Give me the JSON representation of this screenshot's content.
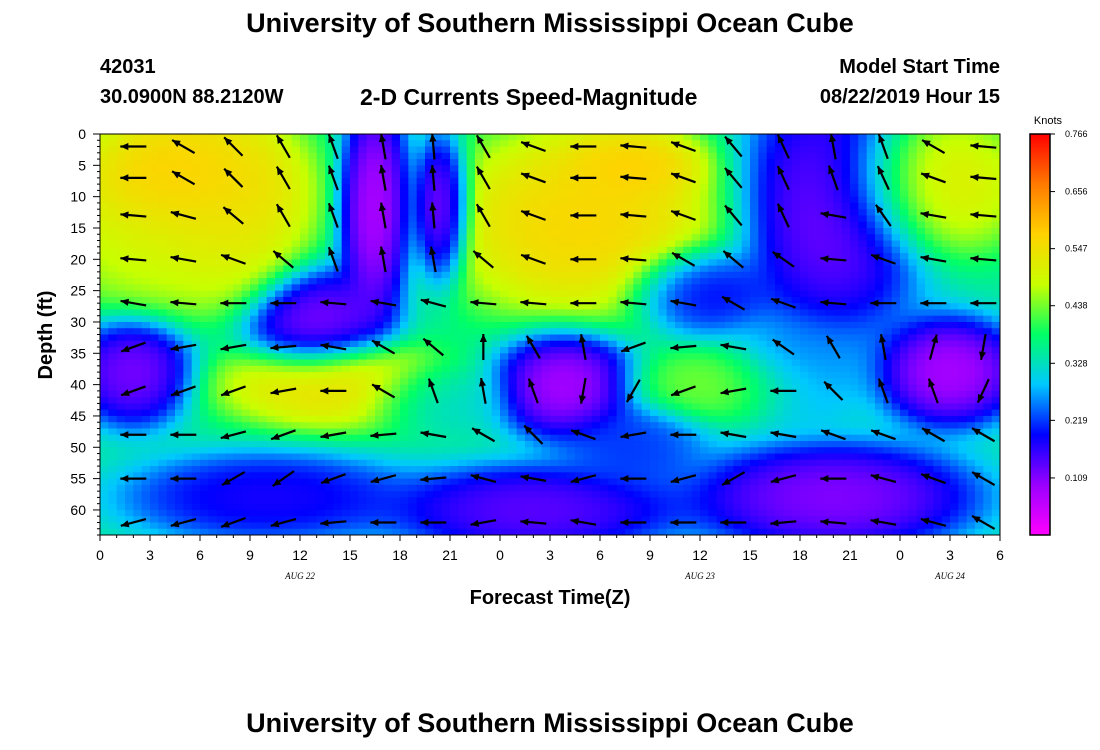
{
  "header": {
    "title": "University of Southern Mississippi Ocean Cube",
    "station": "42031",
    "coords": "30.0900N 88.2120W",
    "subtitle": "2-D Currents Speed-Magnitude",
    "model_start_label": "Model Start Time",
    "model_start_value": "08/22/2019 Hour 15"
  },
  "footer": {
    "title": "University of Southern Mississippi Ocean Cube"
  },
  "chart_data": {
    "type": "heatmap",
    "title": "2-D Currents Speed-Magnitude",
    "xlabel": "Forecast Time(Z)",
    "ylabel": "Depth (ft)",
    "x_ticks": [
      "0",
      "3",
      "6",
      "9",
      "12",
      "15",
      "18",
      "21",
      "0",
      "3",
      "6",
      "9",
      "12",
      "15",
      "18",
      "21",
      "0",
      "3",
      "6"
    ],
    "x_range_hours": [
      0,
      54
    ],
    "date_labels": [
      {
        "text": "AUG 22",
        "hour": 12
      },
      {
        "text": "AUG 23",
        "hour": 36
      },
      {
        "text": "AUG 24",
        "hour": 51
      }
    ],
    "y_ticks": [
      0,
      5,
      10,
      15,
      20,
      25,
      30,
      35,
      40,
      45,
      50,
      55,
      60
    ],
    "ylim": [
      0,
      64
    ],
    "y_inverted": true,
    "colorbar": {
      "title": "Knots",
      "ticks": [
        0.766,
        0.656,
        0.547,
        0.438,
        0.328,
        0.219,
        0.109
      ],
      "range": [
        0,
        0.766
      ],
      "colors": [
        "#ff00ff",
        "#9a00ff",
        "#0000ff",
        "#00c8ff",
        "#00ff66",
        "#c8ff00",
        "#ffd200",
        "#ff7a00",
        "#ff0000"
      ]
    },
    "speed_blobs": [
      {
        "x": 5,
        "y": 8,
        "v": 0.62,
        "rx": 5,
        "ry": 9
      },
      {
        "x": 4,
        "y": 18,
        "v": 0.5,
        "rx": 5,
        "ry": 8
      },
      {
        "x": 8,
        "y": 12,
        "v": 0.55,
        "rx": 3,
        "ry": 10
      },
      {
        "x": 13,
        "y": 30,
        "v": 0.08,
        "rx": 3,
        "ry": 6
      },
      {
        "x": 16.5,
        "y": 12,
        "v": 0.03,
        "rx": 1.5,
        "ry": 12
      },
      {
        "x": 20.5,
        "y": 12,
        "v": 0.04,
        "rx": 1.2,
        "ry": 8
      },
      {
        "x": 2,
        "y": 38,
        "v": 0.08,
        "rx": 2.5,
        "ry": 6
      },
      {
        "x": 14,
        "y": 40,
        "v": 0.58,
        "rx": 5,
        "ry": 5
      },
      {
        "x": 20,
        "y": 42,
        "v": 0.3,
        "rx": 3,
        "ry": 4
      },
      {
        "x": 29,
        "y": 14,
        "v": 0.6,
        "rx": 6,
        "ry": 11
      },
      {
        "x": 32,
        "y": 5,
        "v": 0.6,
        "rx": 3,
        "ry": 4
      },
      {
        "x": 36,
        "y": 25,
        "v": 0.15,
        "rx": 3,
        "ry": 5
      },
      {
        "x": 28,
        "y": 40,
        "v": 0.04,
        "rx": 3,
        "ry": 6
      },
      {
        "x": 37,
        "y": 40,
        "v": 0.45,
        "rx": 4,
        "ry": 4
      },
      {
        "x": 32,
        "y": 50,
        "v": 0.2,
        "rx": 3,
        "ry": 5
      },
      {
        "x": 44,
        "y": 12,
        "v": 0.08,
        "rx": 4,
        "ry": 14
      },
      {
        "x": 42,
        "y": 38,
        "v": 0.25,
        "rx": 3,
        "ry": 6
      },
      {
        "x": 50,
        "y": 8,
        "v": 0.55,
        "rx": 4,
        "ry": 8
      },
      {
        "x": 51,
        "y": 38,
        "v": 0.04,
        "rx": 3,
        "ry": 6
      },
      {
        "x": 44,
        "y": 58,
        "v": 0.07,
        "rx": 6,
        "ry": 6
      },
      {
        "x": 26,
        "y": 60,
        "v": 0.1,
        "rx": 6,
        "ry": 5
      },
      {
        "x": 10,
        "y": 58,
        "v": 0.15,
        "rx": 6,
        "ry": 5
      }
    ],
    "vectors": {
      "x_hours": [
        2,
        5,
        8,
        11,
        14,
        17,
        20,
        23,
        26,
        29,
        32,
        35,
        38,
        41,
        44,
        47,
        50,
        53
      ],
      "depths": [
        2,
        7,
        13,
        20,
        27,
        34,
        41,
        48,
        55,
        62
      ],
      "directions_deg": [
        [
          180,
          150,
          135,
          120,
          110,
          100,
          95,
          120,
          160,
          180,
          175,
          160,
          130,
          115,
          100,
          110,
          150,
          175
        ],
        [
          180,
          150,
          135,
          120,
          110,
          100,
          95,
          120,
          160,
          180,
          175,
          160,
          130,
          115,
          110,
          115,
          160,
          175
        ],
        [
          175,
          165,
          140,
          120,
          110,
          100,
          95,
          120,
          160,
          180,
          175,
          160,
          130,
          115,
          170,
          125,
          170,
          175
        ],
        [
          175,
          170,
          160,
          140,
          110,
          100,
          100,
          140,
          160,
          180,
          175,
          150,
          140,
          145,
          175,
          160,
          170,
          175
        ],
        [
          170,
          175,
          180,
          180,
          175,
          170,
          165,
          175,
          175,
          180,
          175,
          170,
          150,
          160,
          175,
          180,
          180,
          180
        ],
        [
          200,
          190,
          190,
          185,
          170,
          150,
          140,
          90,
          120,
          100,
          200,
          185,
          170,
          145,
          120,
          100,
          75,
          260
        ],
        [
          200,
          200,
          200,
          190,
          180,
          150,
          110,
          100,
          110,
          260,
          240,
          200,
          190,
          180,
          135,
          110,
          110,
          245
        ],
        [
          180,
          180,
          195,
          200,
          190,
          185,
          170,
          150,
          135,
          160,
          190,
          180,
          170,
          170,
          160,
          160,
          150,
          150
        ],
        [
          180,
          180,
          210,
          215,
          200,
          195,
          185,
          165,
          170,
          195,
          180,
          195,
          210,
          195,
          180,
          165,
          160,
          150
        ],
        [
          195,
          195,
          200,
          195,
          185,
          180,
          180,
          190,
          175,
          170,
          180,
          180,
          180,
          185,
          175,
          170,
          165,
          150
        ]
      ]
    }
  }
}
